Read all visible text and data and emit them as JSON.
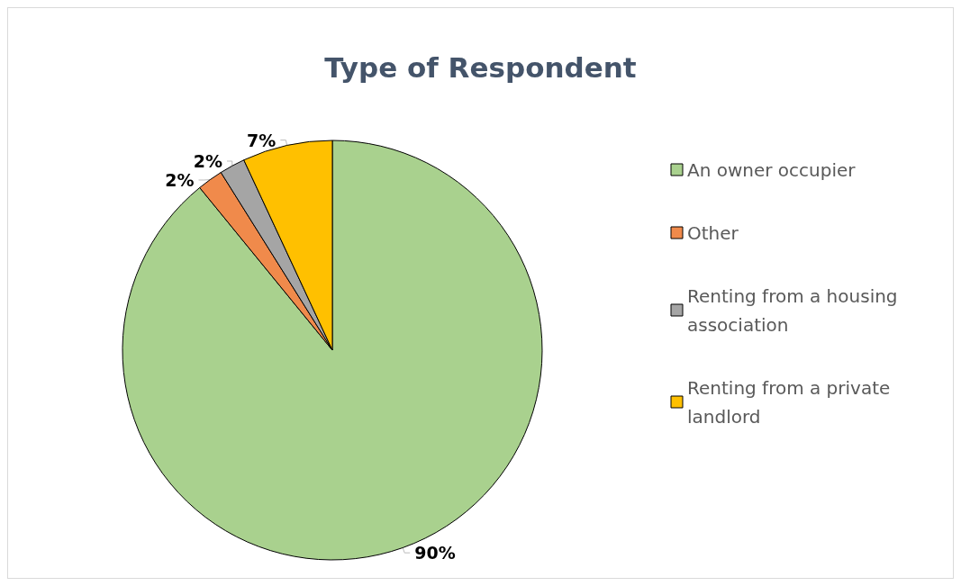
{
  "chart_data": {
    "type": "pie",
    "title": "Type of Respondent",
    "categories": [
      "An owner occupier",
      "Other",
      "Renting from a housing association",
      "Renting from a private landlord"
    ],
    "values": [
      90,
      2,
      2,
      7
    ],
    "value_labels": [
      "90%",
      "2%",
      "2%",
      "7%"
    ],
    "colors": [
      "#a9d18e",
      "#f08a4b",
      "#a5a5a5",
      "#ffc000"
    ],
    "legend": "right"
  }
}
